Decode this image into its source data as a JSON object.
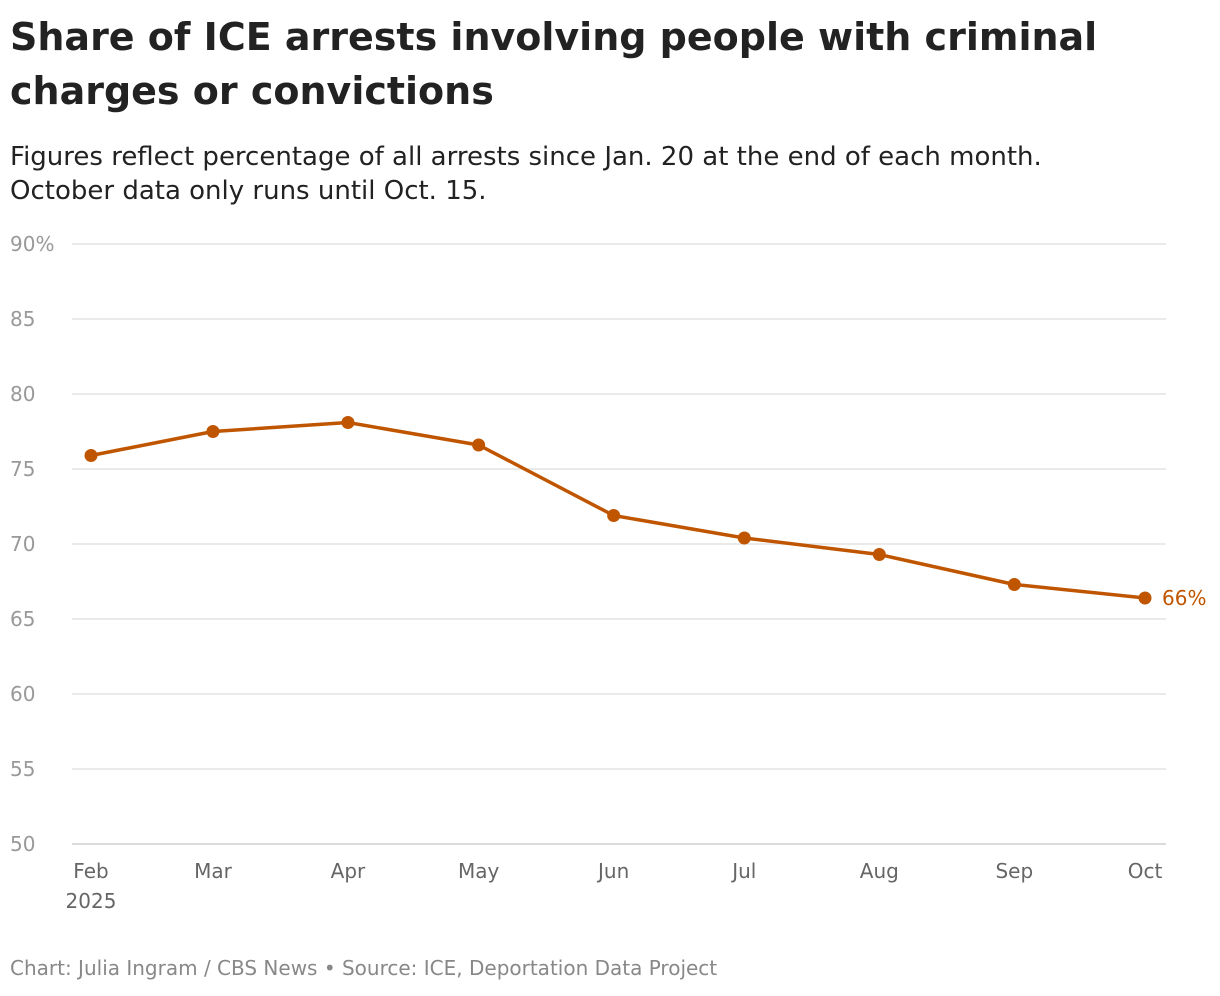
{
  "title": "Share of ICE arrests involving people with criminal charges or convictions",
  "subtitle_lines": [
    "Figures reflect percentage of all arrests since Jan. 20 at the end of each month.",
    "October data only runs until Oct. 15."
  ],
  "footer": "Chart: Julia Ingram / CBS News • Source: ICE, Deportation Data Project",
  "colors": {
    "line": "#c05500",
    "grid": "#e3e3e3",
    "tick_text": "#999999",
    "x_tick_text": "#666666"
  },
  "chart_data": {
    "type": "line",
    "title": "Share of ICE arrests involving people with criminal charges or convictions",
    "xlabel": "",
    "ylabel": "",
    "ylim": [
      50,
      90
    ],
    "yticks": [
      50,
      55,
      60,
      65,
      70,
      75,
      80,
      85,
      90
    ],
    "ytick_labels": [
      "50",
      "55",
      "60",
      "65",
      "70",
      "75",
      "80",
      "85",
      "90%"
    ],
    "x": [
      "2025-02-01",
      "2025-03-01",
      "2025-04-01",
      "2025-05-01",
      "2025-06-01",
      "2025-07-01",
      "2025-08-01",
      "2025-09-01",
      "2025-10-01"
    ],
    "xtick_labels": [
      "Feb",
      "Mar",
      "Apr",
      "May",
      "Jun",
      "Jul",
      "Aug",
      "Sep",
      "Oct"
    ],
    "xtick_year": "2025",
    "grid": true,
    "series": [
      {
        "values": [
          75.9,
          77.5,
          78.1,
          76.6,
          71.9,
          70.4,
          69.3,
          67.3,
          66.4
        ]
      }
    ],
    "end_label": "66%"
  }
}
